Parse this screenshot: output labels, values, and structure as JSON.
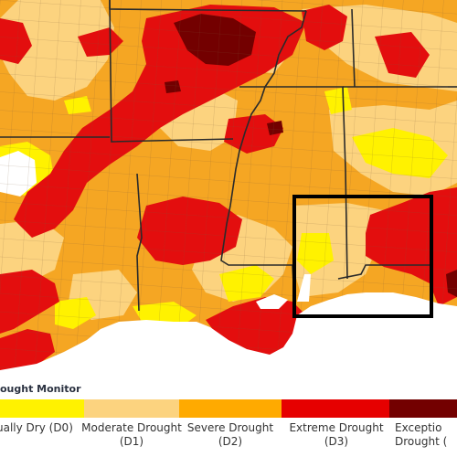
{
  "legend": {
    "title": "ought Monitor",
    "items": [
      {
        "line1": "ually Dry (D0)",
        "line2": "",
        "color": "#fff200"
      },
      {
        "line1": "Moderate Drought",
        "line2": "(D1)",
        "color": "#fcd37f"
      },
      {
        "line1": "Severe Drought",
        "line2": "(D2)",
        "color": "#ffaa00"
      },
      {
        "line1": "Extreme Drought",
        "line2": "(D3)",
        "color": "#e60000"
      },
      {
        "line1": "Exceptio",
        "line2": "Drought (",
        "color": "#730000"
      }
    ]
  },
  "map": {
    "colors": {
      "none": "#ffffff",
      "d0": "#fff200",
      "d1": "#fcd37f",
      "d2": "#f5a623",
      "d3": "#e30e0e",
      "d4": "#730000",
      "water": "#ffffff",
      "county_lines": "#8a6a4a",
      "state_lines": "#2a2a2a",
      "highlight_box": "#000000"
    }
  }
}
